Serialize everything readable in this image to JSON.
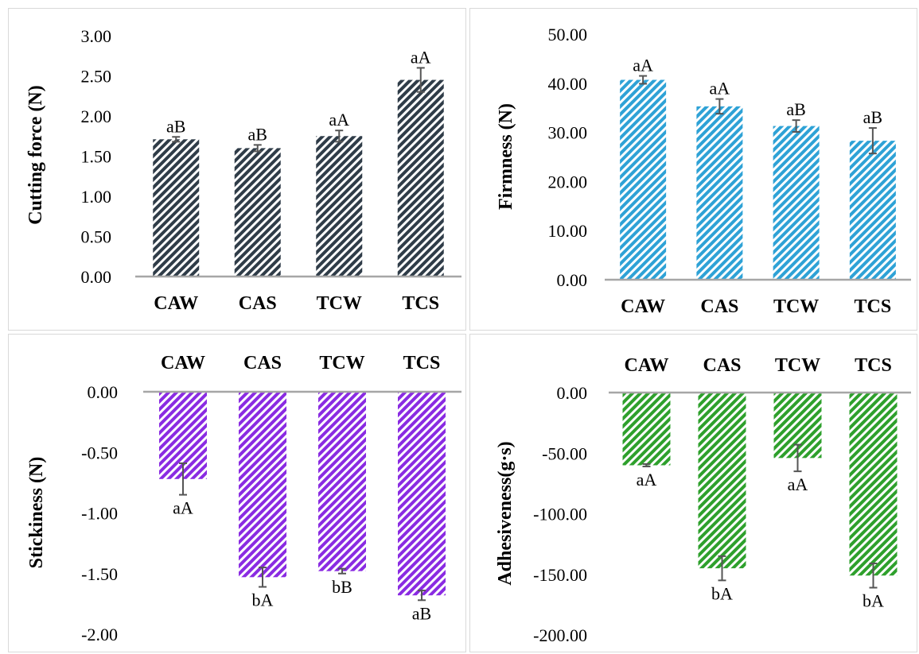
{
  "chart_data": [
    {
      "type": "bar",
      "ylabel": "Cutting force (N)",
      "categories": [
        "CAW",
        "CAS",
        "TCW",
        "TCS"
      ],
      "values": [
        1.71,
        1.6,
        1.75,
        2.45
      ],
      "errors": [
        0.03,
        0.04,
        0.07,
        0.15
      ],
      "labels": [
        "aB",
        "aB",
        "aA",
        "aA"
      ],
      "ylim": [
        0,
        3
      ],
      "ticks": [
        "0.00",
        "0.50",
        "1.00",
        "1.50",
        "2.00",
        "2.50",
        "3.00"
      ],
      "color": "#2f3c48",
      "grid": false
    },
    {
      "type": "bar",
      "ylabel": "Firmness (N)",
      "categories": [
        "CAW",
        "CAS",
        "TCW",
        "TCS"
      ],
      "values": [
        40.7,
        35.3,
        31.3,
        28.3
      ],
      "errors": [
        0.8,
        1.5,
        1.2,
        2.6
      ],
      "labels": [
        "aA",
        "aA",
        "aB",
        "aB"
      ],
      "ylim": [
        0,
        50
      ],
      "ticks": [
        "0.00",
        "10.00",
        "20.00",
        "30.00",
        "40.00",
        "50.00"
      ],
      "color": "#2ea2d6",
      "grid": false
    },
    {
      "type": "bar",
      "ylabel": "Stickiness (N)",
      "categories": [
        "CAW",
        "CAS",
        "TCW",
        "TCS"
      ],
      "values": [
        -0.72,
        -1.53,
        -1.48,
        -1.68
      ],
      "errors": [
        0.13,
        0.08,
        0.02,
        0.04
      ],
      "labels": [
        "aA",
        "bA",
        "bB",
        "aB"
      ],
      "ylim": [
        -2,
        0
      ],
      "ticks": [
        "0.00",
        "-0.50",
        "-1.00",
        "-1.50",
        "-2.00"
      ],
      "color": "#8a2be2",
      "grid": false
    },
    {
      "type": "bar",
      "ylabel": "Adhesiveness(g·s)",
      "categories": [
        "CAW",
        "CAS",
        "TCW",
        "TCS"
      ],
      "values": [
        -60,
        -145,
        -54,
        -151
      ],
      "errors": [
        1,
        10,
        11,
        10
      ],
      "labels": [
        "aA",
        "bA",
        "aA",
        "bA"
      ],
      "ylim": [
        -200,
        0
      ],
      "ticks": [
        "0.00",
        "-50.00",
        "-100.00",
        "-150.00",
        "-200.00"
      ],
      "color": "#2ea02c",
      "grid": false
    }
  ]
}
